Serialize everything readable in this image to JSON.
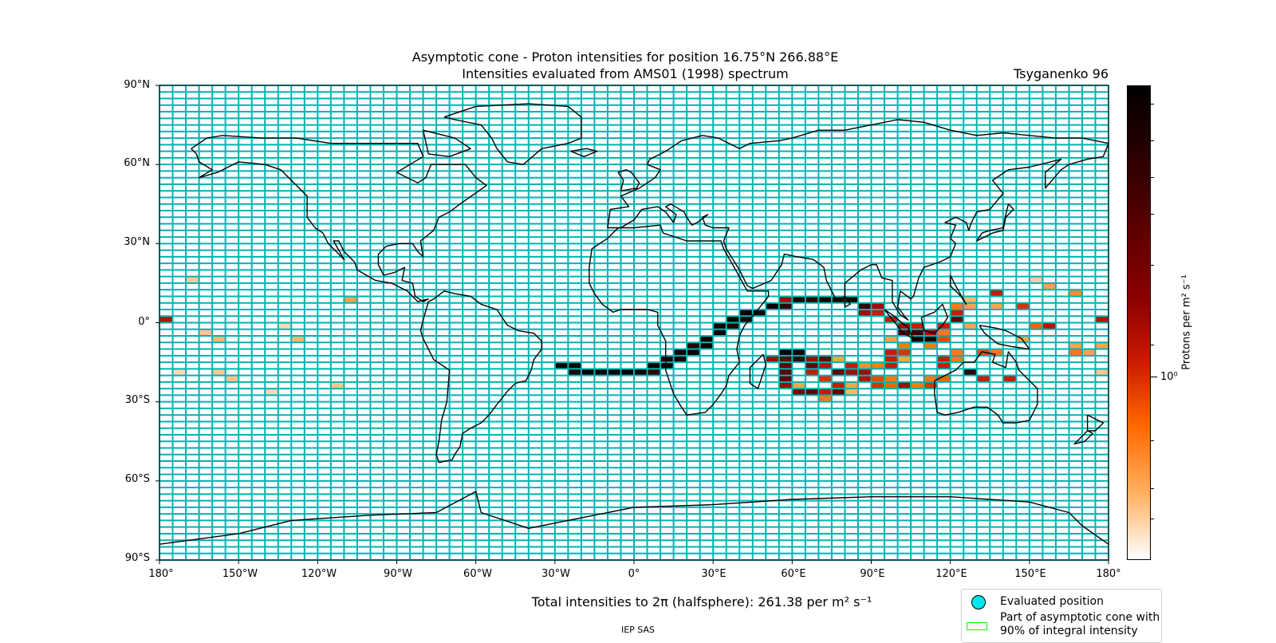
{
  "title_line1": "Asymptotic cone - Proton intensities for position 16.75°N 266.88°E",
  "title_line2": "Intensities evaluated from AMS01 (1998) spectrum",
  "model": "Tsyganenko 96",
  "lat_labels": [
    "90°N",
    "60°N",
    "30°N",
    "0°",
    "30°S",
    "60°S",
    "90°S"
  ],
  "lon_labels": [
    "180°",
    "150°W",
    "120°W",
    "90°W",
    "60°W",
    "30°W",
    "0°",
    "30°E",
    "60°E",
    "90°E",
    "120°E",
    "150°E",
    "180°"
  ],
  "colorbar": {
    "label": "Protons per m² s⁻¹",
    "tick_label": "10⁰",
    "colors": [
      "#ffffff",
      "#ffb060",
      "#ff6a00",
      "#c81a00",
      "#8b0000",
      "#3a0000",
      "#000000"
    ],
    "scale": "log"
  },
  "total": "Total intensities to 2π (halfsphere): 261.38 per m² s⁻¹",
  "credit": "IEP SAS",
  "legend": {
    "item1": "Evaluated position",
    "item2_line1": "Part of asymptotic cone with",
    "item2_line2": "90% of integral intensity"
  },
  "colors": {
    "grid": "#00b3b3",
    "coast": "#000000",
    "evaluated_position": "#00e5ee",
    "cone_90_border": "#00ff00"
  },
  "grid": {
    "lon_step_deg": 5,
    "lat_step_deg": 2.5
  },
  "intensity_cells": [
    {
      "lon": -177.5,
      "lat": 1.25,
      "v": 0.55
    },
    {
      "lon": -167.5,
      "lat": 16.25,
      "v": 0.1
    },
    {
      "lon": -162.5,
      "lat": -3.75,
      "v": 0.12
    },
    {
      "lon": -157.5,
      "lat": -6.25,
      "v": 0.15
    },
    {
      "lon": -157.5,
      "lat": -18.75,
      "v": 0.12
    },
    {
      "lon": -152.5,
      "lat": -21.25,
      "v": 0.12
    },
    {
      "lon": -127.5,
      "lat": -6.25,
      "v": 0.15
    },
    {
      "lon": -112.5,
      "lat": -23.75,
      "v": 0.12
    },
    {
      "lon": -107.5,
      "lat": 8.75,
      "v": 0.2
    },
    {
      "lon": -27.5,
      "lat": -16.25,
      "v": 0.97
    },
    {
      "lon": -22.5,
      "lat": -16.25,
      "v": 0.97
    },
    {
      "lon": -22.5,
      "lat": -18.75,
      "v": 0.9
    },
    {
      "lon": -17.5,
      "lat": -18.75,
      "v": 0.97
    },
    {
      "lon": -12.5,
      "lat": -18.75,
      "v": 0.97
    },
    {
      "lon": -7.5,
      "lat": -18.75,
      "v": 0.97
    },
    {
      "lon": -2.5,
      "lat": -18.75,
      "v": 0.97
    },
    {
      "lon": 2.5,
      "lat": -18.75,
      "v": 0.97
    },
    {
      "lon": 7.5,
      "lat": -18.75,
      "v": 0.85
    },
    {
      "lon": 7.5,
      "lat": -16.25,
      "v": 0.97
    },
    {
      "lon": 12.5,
      "lat": -16.25,
      "v": 0.97
    },
    {
      "lon": 12.5,
      "lat": -13.75,
      "v": 0.92
    },
    {
      "lon": 17.5,
      "lat": -13.75,
      "v": 0.97
    },
    {
      "lon": 17.5,
      "lat": -11.25,
      "v": 0.95
    },
    {
      "lon": 22.5,
      "lat": -11.25,
      "v": 0.97
    },
    {
      "lon": 22.5,
      "lat": -8.75,
      "v": 0.9
    },
    {
      "lon": 27.5,
      "lat": -8.75,
      "v": 0.97
    },
    {
      "lon": 27.5,
      "lat": -6.25,
      "v": 0.97
    },
    {
      "lon": 32.5,
      "lat": -3.75,
      "v": 0.97
    },
    {
      "lon": 32.5,
      "lat": -1.25,
      "v": 0.97
    },
    {
      "lon": 37.5,
      "lat": -1.25,
      "v": 0.9
    },
    {
      "lon": 37.5,
      "lat": 1.25,
      "v": 0.97
    },
    {
      "lon": 42.5,
      "lat": 1.25,
      "v": 0.9
    },
    {
      "lon": 42.5,
      "lat": 3.75,
      "v": 0.97
    },
    {
      "lon": 47.5,
      "lat": 3.75,
      "v": 0.95
    },
    {
      "lon": 52.5,
      "lat": 6.25,
      "v": 0.97
    },
    {
      "lon": 57.5,
      "lat": 6.25,
      "v": 0.85
    },
    {
      "lon": 57.5,
      "lat": 8.75,
      "v": 0.6
    },
    {
      "lon": 62.5,
      "lat": 8.75,
      "v": 0.95
    },
    {
      "lon": 67.5,
      "lat": 8.75,
      "v": 0.9
    },
    {
      "lon": 72.5,
      "lat": 8.75,
      "v": 0.95
    },
    {
      "lon": 77.5,
      "lat": 8.75,
      "v": 0.9
    },
    {
      "lon": 82.5,
      "lat": 8.75,
      "v": 0.95
    },
    {
      "lon": 87.5,
      "lat": 6.25,
      "v": 0.85
    },
    {
      "lon": 92.5,
      "lat": 6.25,
      "v": 0.6
    },
    {
      "lon": 87.5,
      "lat": 3.75,
      "v": 0.6
    },
    {
      "lon": 92.5,
      "lat": 3.75,
      "v": 0.5
    },
    {
      "lon": 97.5,
      "lat": 1.25,
      "v": 0.5
    },
    {
      "lon": 102.5,
      "lat": -1.25,
      "v": 0.6
    },
    {
      "lon": 107.5,
      "lat": -1.25,
      "v": 0.5
    },
    {
      "lon": 102.5,
      "lat": -3.75,
      "v": 0.8
    },
    {
      "lon": 107.5,
      "lat": -3.75,
      "v": 0.85
    },
    {
      "lon": 112.5,
      "lat": -3.75,
      "v": 0.6
    },
    {
      "lon": 107.5,
      "lat": -6.25,
      "v": 0.95
    },
    {
      "lon": 112.5,
      "lat": -6.25,
      "v": 0.97
    },
    {
      "lon": 117.5,
      "lat": -6.25,
      "v": 0.4
    },
    {
      "lon": 97.5,
      "lat": -6.25,
      "v": 0.2
    },
    {
      "lon": 102.5,
      "lat": -8.75,
      "v": 0.3
    },
    {
      "lon": 112.5,
      "lat": -8.75,
      "v": 0.3
    },
    {
      "lon": 102.5,
      "lat": -11.25,
      "v": 0.45
    },
    {
      "lon": 97.5,
      "lat": -11.25,
      "v": 0.5
    },
    {
      "lon": 102.5,
      "lat": -13.75,
      "v": 0.2
    },
    {
      "lon": 97.5,
      "lat": -13.75,
      "v": 0.5
    },
    {
      "lon": 97.5,
      "lat": -16.25,
      "v": 0.5
    },
    {
      "lon": 92.5,
      "lat": -16.25,
      "v": 0.3
    },
    {
      "lon": 87.5,
      "lat": -16.25,
      "v": 0.25
    },
    {
      "lon": 82.5,
      "lat": -16.25,
      "v": 0.5
    },
    {
      "lon": 77.5,
      "lat": -13.75,
      "v": 0.2
    },
    {
      "lon": 72.5,
      "lat": -13.75,
      "v": 0.75
    },
    {
      "lon": 67.5,
      "lat": -13.75,
      "v": 0.6
    },
    {
      "lon": 62.5,
      "lat": -13.75,
      "v": 0.85
    },
    {
      "lon": 62.5,
      "lat": -11.25,
      "v": 0.95
    },
    {
      "lon": 57.5,
      "lat": -11.25,
      "v": 0.97
    },
    {
      "lon": 52.5,
      "lat": -13.75,
      "v": 0.6
    },
    {
      "lon": 57.5,
      "lat": -13.75,
      "v": 0.75
    },
    {
      "lon": 57.5,
      "lat": -16.25,
      "v": 0.75
    },
    {
      "lon": 57.5,
      "lat": -18.75,
      "v": 0.75
    },
    {
      "lon": 57.5,
      "lat": -21.25,
      "v": 0.75
    },
    {
      "lon": 57.5,
      "lat": -23.75,
      "v": 0.6
    },
    {
      "lon": 62.5,
      "lat": -23.75,
      "v": 0.2
    },
    {
      "lon": 62.5,
      "lat": -26.25,
      "v": 0.7
    },
    {
      "lon": 67.5,
      "lat": -26.25,
      "v": 0.75
    },
    {
      "lon": 72.5,
      "lat": -26.25,
      "v": 0.5
    },
    {
      "lon": 72.5,
      "lat": -28.75,
      "v": 0.3
    },
    {
      "lon": 77.5,
      "lat": -26.25,
      "v": 0.75
    },
    {
      "lon": 77.5,
      "lat": -23.75,
      "v": 0.5
    },
    {
      "lon": 82.5,
      "lat": -23.75,
      "v": 0.2
    },
    {
      "lon": 82.5,
      "lat": -26.25,
      "v": 0.15
    },
    {
      "lon": 67.5,
      "lat": -16.25,
      "v": 0.75
    },
    {
      "lon": 67.5,
      "lat": -18.75,
      "v": 0.5
    },
    {
      "lon": 72.5,
      "lat": -16.25,
      "v": 0.55
    },
    {
      "lon": 72.5,
      "lat": -21.25,
      "v": 0.45
    },
    {
      "lon": 77.5,
      "lat": -18.75,
      "v": 0.75
    },
    {
      "lon": 82.5,
      "lat": -18.75,
      "v": 0.6
    },
    {
      "lon": 87.5,
      "lat": -18.75,
      "v": 0.6
    },
    {
      "lon": 87.5,
      "lat": -21.25,
      "v": 0.55
    },
    {
      "lon": 92.5,
      "lat": -21.25,
      "v": 0.4
    },
    {
      "lon": 92.5,
      "lat": -23.75,
      "v": 0.45
    },
    {
      "lon": 97.5,
      "lat": -21.25,
      "v": 0.3
    },
    {
      "lon": 97.5,
      "lat": -23.75,
      "v": 0.35
    },
    {
      "lon": 102.5,
      "lat": -23.75,
      "v": 0.6
    },
    {
      "lon": 107.5,
      "lat": -23.75,
      "v": 0.3
    },
    {
      "lon": 112.5,
      "lat": -23.75,
      "v": 0.45
    },
    {
      "lon": 112.5,
      "lat": -21.25,
      "v": 0.3
    },
    {
      "lon": 117.5,
      "lat": -21.25,
      "v": 0.35
    },
    {
      "lon": 117.5,
      "lat": -13.75,
      "v": 0.5
    },
    {
      "lon": 117.5,
      "lat": -16.25,
      "v": 0.5
    },
    {
      "lon": 122.5,
      "lat": -13.75,
      "v": 0.3
    },
    {
      "lon": 122.5,
      "lat": -11.25,
      "v": 0.3
    },
    {
      "lon": 117.5,
      "lat": -1.25,
      "v": 0.5
    },
    {
      "lon": 117.5,
      "lat": -3.75,
      "v": 0.3
    },
    {
      "lon": 122.5,
      "lat": 1.25,
      "v": 0.75
    },
    {
      "lon": 122.5,
      "lat": 3.75,
      "v": 0.5
    },
    {
      "lon": 122.5,
      "lat": 6.25,
      "v": 0.3
    },
    {
      "lon": 127.5,
      "lat": 6.25,
      "v": 0.2
    },
    {
      "lon": 127.5,
      "lat": 8.75,
      "v": 0.15
    },
    {
      "lon": 127.5,
      "lat": -1.25,
      "v": 0.2
    },
    {
      "lon": 127.5,
      "lat": -18.75,
      "v": 0.85
    },
    {
      "lon": 132.5,
      "lat": -21.25,
      "v": 0.5
    },
    {
      "lon": 132.5,
      "lat": -11.25,
      "v": 0.4
    },
    {
      "lon": 137.5,
      "lat": -11.25,
      "v": 0.3
    },
    {
      "lon": 142.5,
      "lat": -21.25,
      "v": 0.5
    },
    {
      "lon": 137.5,
      "lat": 11.25,
      "v": 0.5
    },
    {
      "lon": 137.5,
      "lat": 6.25,
      "v": 0.2
    },
    {
      "lon": 147.5,
      "lat": 6.25,
      "v": 0.45
    },
    {
      "lon": 147.5,
      "lat": -6.25,
      "v": 0.2
    },
    {
      "lon": 152.5,
      "lat": -1.25,
      "v": 0.35
    },
    {
      "lon": 157.5,
      "lat": -1.25,
      "v": 0.55
    },
    {
      "lon": 157.5,
      "lat": 13.75,
      "v": 0.2
    },
    {
      "lon": 152.5,
      "lat": 16.25,
      "v": 0.1
    },
    {
      "lon": 167.5,
      "lat": 11.25,
      "v": 0.25
    },
    {
      "lon": 167.5,
      "lat": -8.75,
      "v": 0.2
    },
    {
      "lon": 167.5,
      "lat": -11.25,
      "v": 0.3
    },
    {
      "lon": 172.5,
      "lat": -11.25,
      "v": 0.2
    },
    {
      "lon": 177.5,
      "lat": -8.75,
      "v": 0.2
    },
    {
      "lon": 177.5,
      "lat": 1.25,
      "v": 0.55
    },
    {
      "lon": 177.5,
      "lat": -18.75,
      "v": 0.12
    },
    {
      "lon": -132.5,
      "lat": -1.25,
      "v": 0.08
    },
    {
      "lon": -137.5,
      "lat": -26.25,
      "v": 0.08
    },
    {
      "lon": -172.5,
      "lat": -18.75,
      "v": 0.08
    }
  ]
}
